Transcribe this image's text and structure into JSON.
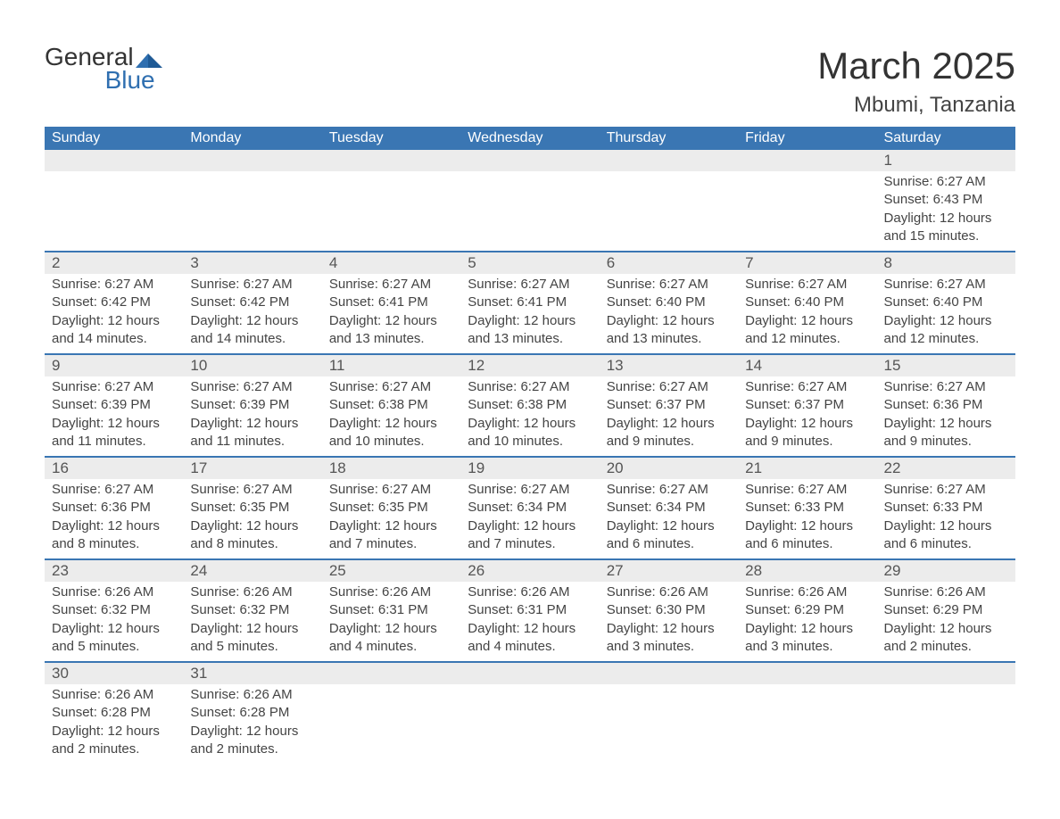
{
  "logo": {
    "word1": "General",
    "word2": "Blue"
  },
  "title": "March 2025",
  "location": "Mbumi, Tanzania",
  "colors": {
    "header_bg": "#3a76b3",
    "header_text": "#ffffff",
    "strip_bg": "#ececec",
    "rule": "#3a76b3",
    "body_text": "#444444",
    "logo_blue": "#2f6fb0",
    "page_bg": "#ffffff"
  },
  "typography": {
    "title_fontsize": 42,
    "location_fontsize": 24,
    "header_fontsize": 16,
    "daynum_fontsize": 17,
    "body_fontsize": 15
  },
  "day_labels": [
    "Sunday",
    "Monday",
    "Tuesday",
    "Wednesday",
    "Thursday",
    "Friday",
    "Saturday"
  ],
  "weeks": [
    [
      null,
      null,
      null,
      null,
      null,
      null,
      {
        "n": "1",
        "sunrise": "Sunrise: 6:27 AM",
        "sunset": "Sunset: 6:43 PM",
        "daylight": "Daylight: 12 hours and 15 minutes."
      }
    ],
    [
      {
        "n": "2",
        "sunrise": "Sunrise: 6:27 AM",
        "sunset": "Sunset: 6:42 PM",
        "daylight": "Daylight: 12 hours and 14 minutes."
      },
      {
        "n": "3",
        "sunrise": "Sunrise: 6:27 AM",
        "sunset": "Sunset: 6:42 PM",
        "daylight": "Daylight: 12 hours and 14 minutes."
      },
      {
        "n": "4",
        "sunrise": "Sunrise: 6:27 AM",
        "sunset": "Sunset: 6:41 PM",
        "daylight": "Daylight: 12 hours and 13 minutes."
      },
      {
        "n": "5",
        "sunrise": "Sunrise: 6:27 AM",
        "sunset": "Sunset: 6:41 PM",
        "daylight": "Daylight: 12 hours and 13 minutes."
      },
      {
        "n": "6",
        "sunrise": "Sunrise: 6:27 AM",
        "sunset": "Sunset: 6:40 PM",
        "daylight": "Daylight: 12 hours and 13 minutes."
      },
      {
        "n": "7",
        "sunrise": "Sunrise: 6:27 AM",
        "sunset": "Sunset: 6:40 PM",
        "daylight": "Daylight: 12 hours and 12 minutes."
      },
      {
        "n": "8",
        "sunrise": "Sunrise: 6:27 AM",
        "sunset": "Sunset: 6:40 PM",
        "daylight": "Daylight: 12 hours and 12 minutes."
      }
    ],
    [
      {
        "n": "9",
        "sunrise": "Sunrise: 6:27 AM",
        "sunset": "Sunset: 6:39 PM",
        "daylight": "Daylight: 12 hours and 11 minutes."
      },
      {
        "n": "10",
        "sunrise": "Sunrise: 6:27 AM",
        "sunset": "Sunset: 6:39 PM",
        "daylight": "Daylight: 12 hours and 11 minutes."
      },
      {
        "n": "11",
        "sunrise": "Sunrise: 6:27 AM",
        "sunset": "Sunset: 6:38 PM",
        "daylight": "Daylight: 12 hours and 10 minutes."
      },
      {
        "n": "12",
        "sunrise": "Sunrise: 6:27 AM",
        "sunset": "Sunset: 6:38 PM",
        "daylight": "Daylight: 12 hours and 10 minutes."
      },
      {
        "n": "13",
        "sunrise": "Sunrise: 6:27 AM",
        "sunset": "Sunset: 6:37 PM",
        "daylight": "Daylight: 12 hours and 9 minutes."
      },
      {
        "n": "14",
        "sunrise": "Sunrise: 6:27 AM",
        "sunset": "Sunset: 6:37 PM",
        "daylight": "Daylight: 12 hours and 9 minutes."
      },
      {
        "n": "15",
        "sunrise": "Sunrise: 6:27 AM",
        "sunset": "Sunset: 6:36 PM",
        "daylight": "Daylight: 12 hours and 9 minutes."
      }
    ],
    [
      {
        "n": "16",
        "sunrise": "Sunrise: 6:27 AM",
        "sunset": "Sunset: 6:36 PM",
        "daylight": "Daylight: 12 hours and 8 minutes."
      },
      {
        "n": "17",
        "sunrise": "Sunrise: 6:27 AM",
        "sunset": "Sunset: 6:35 PM",
        "daylight": "Daylight: 12 hours and 8 minutes."
      },
      {
        "n": "18",
        "sunrise": "Sunrise: 6:27 AM",
        "sunset": "Sunset: 6:35 PM",
        "daylight": "Daylight: 12 hours and 7 minutes."
      },
      {
        "n": "19",
        "sunrise": "Sunrise: 6:27 AM",
        "sunset": "Sunset: 6:34 PM",
        "daylight": "Daylight: 12 hours and 7 minutes."
      },
      {
        "n": "20",
        "sunrise": "Sunrise: 6:27 AM",
        "sunset": "Sunset: 6:34 PM",
        "daylight": "Daylight: 12 hours and 6 minutes."
      },
      {
        "n": "21",
        "sunrise": "Sunrise: 6:27 AM",
        "sunset": "Sunset: 6:33 PM",
        "daylight": "Daylight: 12 hours and 6 minutes."
      },
      {
        "n": "22",
        "sunrise": "Sunrise: 6:27 AM",
        "sunset": "Sunset: 6:33 PM",
        "daylight": "Daylight: 12 hours and 6 minutes."
      }
    ],
    [
      {
        "n": "23",
        "sunrise": "Sunrise: 6:26 AM",
        "sunset": "Sunset: 6:32 PM",
        "daylight": "Daylight: 12 hours and 5 minutes."
      },
      {
        "n": "24",
        "sunrise": "Sunrise: 6:26 AM",
        "sunset": "Sunset: 6:32 PM",
        "daylight": "Daylight: 12 hours and 5 minutes."
      },
      {
        "n": "25",
        "sunrise": "Sunrise: 6:26 AM",
        "sunset": "Sunset: 6:31 PM",
        "daylight": "Daylight: 12 hours and 4 minutes."
      },
      {
        "n": "26",
        "sunrise": "Sunrise: 6:26 AM",
        "sunset": "Sunset: 6:31 PM",
        "daylight": "Daylight: 12 hours and 4 minutes."
      },
      {
        "n": "27",
        "sunrise": "Sunrise: 6:26 AM",
        "sunset": "Sunset: 6:30 PM",
        "daylight": "Daylight: 12 hours and 3 minutes."
      },
      {
        "n": "28",
        "sunrise": "Sunrise: 6:26 AM",
        "sunset": "Sunset: 6:29 PM",
        "daylight": "Daylight: 12 hours and 3 minutes."
      },
      {
        "n": "29",
        "sunrise": "Sunrise: 6:26 AM",
        "sunset": "Sunset: 6:29 PM",
        "daylight": "Daylight: 12 hours and 2 minutes."
      }
    ],
    [
      {
        "n": "30",
        "sunrise": "Sunrise: 6:26 AM",
        "sunset": "Sunset: 6:28 PM",
        "daylight": "Daylight: 12 hours and 2 minutes."
      },
      {
        "n": "31",
        "sunrise": "Sunrise: 6:26 AM",
        "sunset": "Sunset: 6:28 PM",
        "daylight": "Daylight: 12 hours and 2 minutes."
      },
      null,
      null,
      null,
      null,
      null
    ]
  ]
}
